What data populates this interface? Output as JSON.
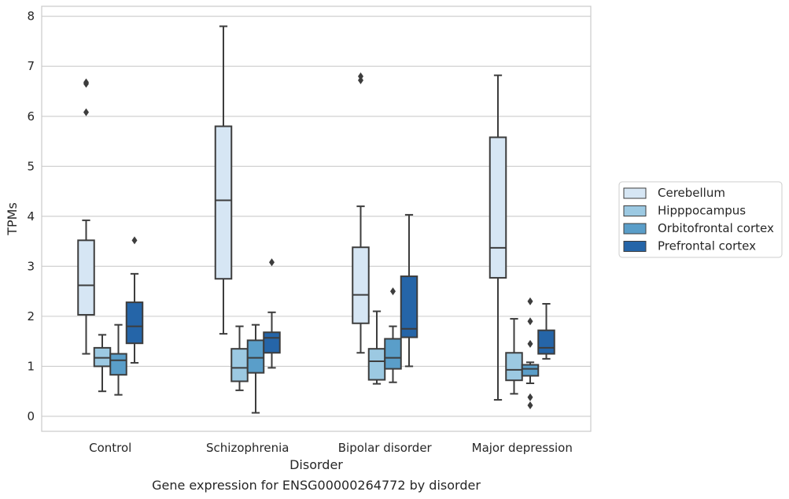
{
  "caption": "Gene expression for ENSG00000264772 by disorder",
  "chart_data": {
    "type": "box",
    "xlabel": "Disorder",
    "ylabel": "TPMs",
    "ylim": [
      -0.3,
      8.2
    ],
    "yticks": [
      0,
      1,
      2,
      3,
      4,
      5,
      6,
      7,
      8
    ],
    "grid": true,
    "legend_position": "right",
    "categories": [
      "Control",
      "Schizophrenia",
      "Bipolar disorder",
      "Major depression"
    ],
    "series": [
      {
        "name": "Cerebellum",
        "color": "#d6e6f4",
        "boxes": [
          {
            "whislo": 1.25,
            "q1": 2.03,
            "med": 2.62,
            "q3": 3.52,
            "whishi": 3.92,
            "fliers": [
              6.08,
              6.65,
              6.68
            ]
          },
          {
            "whislo": 1.65,
            "q1": 2.75,
            "med": 4.32,
            "q3": 5.8,
            "whishi": 7.8,
            "fliers": []
          },
          {
            "whislo": 1.27,
            "q1": 1.86,
            "med": 2.43,
            "q3": 3.38,
            "whishi": 4.2,
            "fliers": [
              6.72,
              6.8
            ]
          },
          {
            "whislo": 0.33,
            "q1": 2.77,
            "med": 3.37,
            "q3": 5.58,
            "whishi": 6.82,
            "fliers": []
          }
        ]
      },
      {
        "name": "Hipppocampus",
        "color": "#9cc9e2",
        "boxes": [
          {
            "whislo": 0.5,
            "q1": 1.0,
            "med": 1.17,
            "q3": 1.37,
            "whishi": 1.63,
            "fliers": []
          },
          {
            "whislo": 0.52,
            "q1": 0.7,
            "med": 0.97,
            "q3": 1.35,
            "whishi": 1.8,
            "fliers": []
          },
          {
            "whislo": 0.65,
            "q1": 0.73,
            "med": 1.1,
            "q3": 1.35,
            "whishi": 2.1,
            "fliers": []
          },
          {
            "whislo": 0.45,
            "q1": 0.72,
            "med": 0.93,
            "q3": 1.27,
            "whishi": 1.95,
            "fliers": []
          }
        ]
      },
      {
        "name": "Orbitofrontal cortex",
        "color": "#5a9ec9",
        "boxes": [
          {
            "whislo": 0.43,
            "q1": 0.83,
            "med": 1.12,
            "q3": 1.25,
            "whishi": 1.83,
            "fliers": []
          },
          {
            "whislo": 0.07,
            "q1": 0.87,
            "med": 1.17,
            "q3": 1.52,
            "whishi": 1.83,
            "fliers": []
          },
          {
            "whislo": 0.68,
            "q1": 0.95,
            "med": 1.17,
            "q3": 1.55,
            "whishi": 1.8,
            "fliers": [
              2.5
            ]
          },
          {
            "whislo": 0.66,
            "q1": 0.81,
            "med": 0.95,
            "q3": 1.03,
            "whishi": 1.08,
            "fliers": [
              0.22,
              0.38,
              1.45,
              1.9,
              2.3
            ]
          }
        ]
      },
      {
        "name": "Prefrontal cortex",
        "color": "#2565a8",
        "boxes": [
          {
            "whislo": 1.07,
            "q1": 1.46,
            "med": 1.8,
            "q3": 2.28,
            "whishi": 2.85,
            "fliers": [
              3.52
            ]
          },
          {
            "whislo": 0.97,
            "q1": 1.27,
            "med": 1.57,
            "q3": 1.68,
            "whishi": 2.08,
            "fliers": [
              3.08
            ]
          },
          {
            "whislo": 1.0,
            "q1": 1.58,
            "med": 1.75,
            "q3": 2.8,
            "whishi": 4.03,
            "fliers": []
          },
          {
            "whislo": 1.15,
            "q1": 1.25,
            "med": 1.37,
            "q3": 1.72,
            "whishi": 2.25,
            "fliers": []
          }
        ]
      }
    ]
  }
}
